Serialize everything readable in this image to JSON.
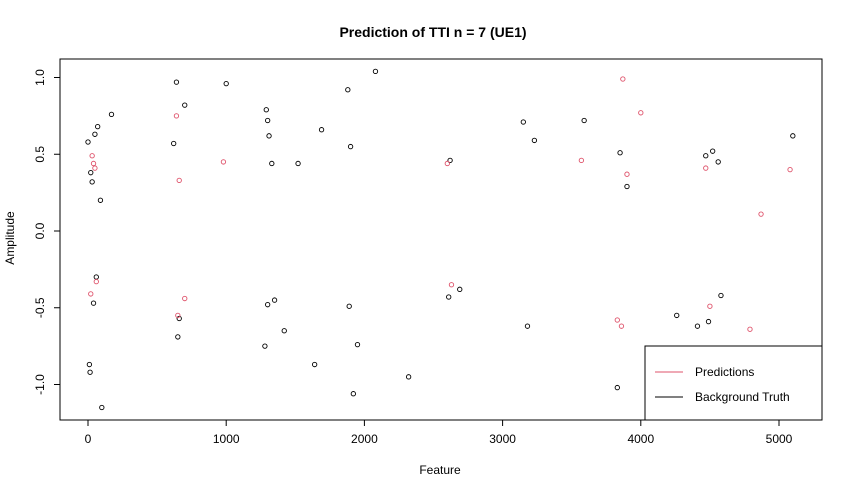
{
  "chart_data": {
    "type": "scatter",
    "title": "Prediction of TTI n = 7  (UE1)",
    "xlabel": "Feature",
    "ylabel": "Amplitude",
    "xlim": [
      0,
      5120
    ],
    "ylim": [
      -1.2,
      1.08
    ],
    "x_ticks": [
      0,
      1000,
      2000,
      3000,
      4000,
      5000
    ],
    "x_tick_labels": [
      "0",
      "1000",
      "2000",
      "3000",
      "4000",
      "5000"
    ],
    "y_ticks": [
      -1.0,
      -0.5,
      0.0,
      0.5,
      1.0
    ],
    "y_tick_labels": [
      "-1.0",
      "-0.5",
      "0.0",
      "0.5",
      "1.0"
    ],
    "grid": false,
    "marker": "open-circle",
    "legend": {
      "placement": "bottom-right",
      "entries": [
        {
          "label": "Predictions",
          "color": "#DF536B"
        },
        {
          "label": "Background Truth",
          "color": "#000000"
        }
      ]
    },
    "series": [
      {
        "name": "Background Truth",
        "color": "#000000",
        "points": [
          [
            0,
            0.58
          ],
          [
            10,
            -0.87
          ],
          [
            15,
            -0.92
          ],
          [
            20,
            0.38
          ],
          [
            30,
            0.32
          ],
          [
            40,
            -0.47
          ],
          [
            50,
            0.63
          ],
          [
            70,
            0.68
          ],
          [
            60,
            -0.3
          ],
          [
            90,
            0.2
          ],
          [
            170,
            0.76
          ],
          [
            100,
            -1.15
          ],
          [
            620,
            0.57
          ],
          [
            640,
            0.97
          ],
          [
            650,
            -0.69
          ],
          [
            660,
            -0.57
          ],
          [
            700,
            0.82
          ],
          [
            1000,
            0.96
          ],
          [
            1280,
            -0.75
          ],
          [
            1290,
            0.79
          ],
          [
            1300,
            0.72
          ],
          [
            1310,
            0.62
          ],
          [
            1330,
            0.44
          ],
          [
            1300,
            -0.48
          ],
          [
            1350,
            -0.45
          ],
          [
            1420,
            -0.65
          ],
          [
            1520,
            0.44
          ],
          [
            1640,
            -0.87
          ],
          [
            1690,
            0.66
          ],
          [
            1880,
            0.92
          ],
          [
            1900,
            0.55
          ],
          [
            1920,
            -1.06
          ],
          [
            1890,
            -0.49
          ],
          [
            1950,
            -0.74
          ],
          [
            2080,
            1.04
          ],
          [
            2320,
            -0.95
          ],
          [
            2610,
            -0.43
          ],
          [
            2620,
            0.46
          ],
          [
            2690,
            -0.38
          ],
          [
            3150,
            0.71
          ],
          [
            3180,
            -0.62
          ],
          [
            3230,
            0.59
          ],
          [
            3590,
            0.72
          ],
          [
            3830,
            -1.02
          ],
          [
            3850,
            0.51
          ],
          [
            3900,
            0.29
          ],
          [
            4260,
            -0.55
          ],
          [
            4410,
            -0.62
          ],
          [
            4470,
            0.49
          ],
          [
            4490,
            -0.59
          ],
          [
            4520,
            0.52
          ],
          [
            4560,
            0.45
          ],
          [
            4580,
            -0.42
          ],
          [
            5100,
            0.62
          ]
        ]
      },
      {
        "name": "Predictions",
        "color": "#DF536B",
        "points": [
          [
            30,
            0.49
          ],
          [
            40,
            0.44
          ],
          [
            50,
            0.41
          ],
          [
            20,
            -0.41
          ],
          [
            60,
            -0.33
          ],
          [
            640,
            0.75
          ],
          [
            650,
            -0.55
          ],
          [
            660,
            0.33
          ],
          [
            700,
            -0.44
          ],
          [
            980,
            0.45
          ],
          [
            2600,
            0.44
          ],
          [
            2630,
            -0.35
          ],
          [
            3570,
            0.46
          ],
          [
            3830,
            -0.58
          ],
          [
            3860,
            -0.62
          ],
          [
            3870,
            0.99
          ],
          [
            3900,
            0.37
          ],
          [
            4000,
            0.77
          ],
          [
            4470,
            0.41
          ],
          [
            4500,
            -0.49
          ],
          [
            4790,
            -0.64
          ],
          [
            4870,
            0.11
          ],
          [
            5080,
            0.4
          ]
        ]
      }
    ]
  }
}
